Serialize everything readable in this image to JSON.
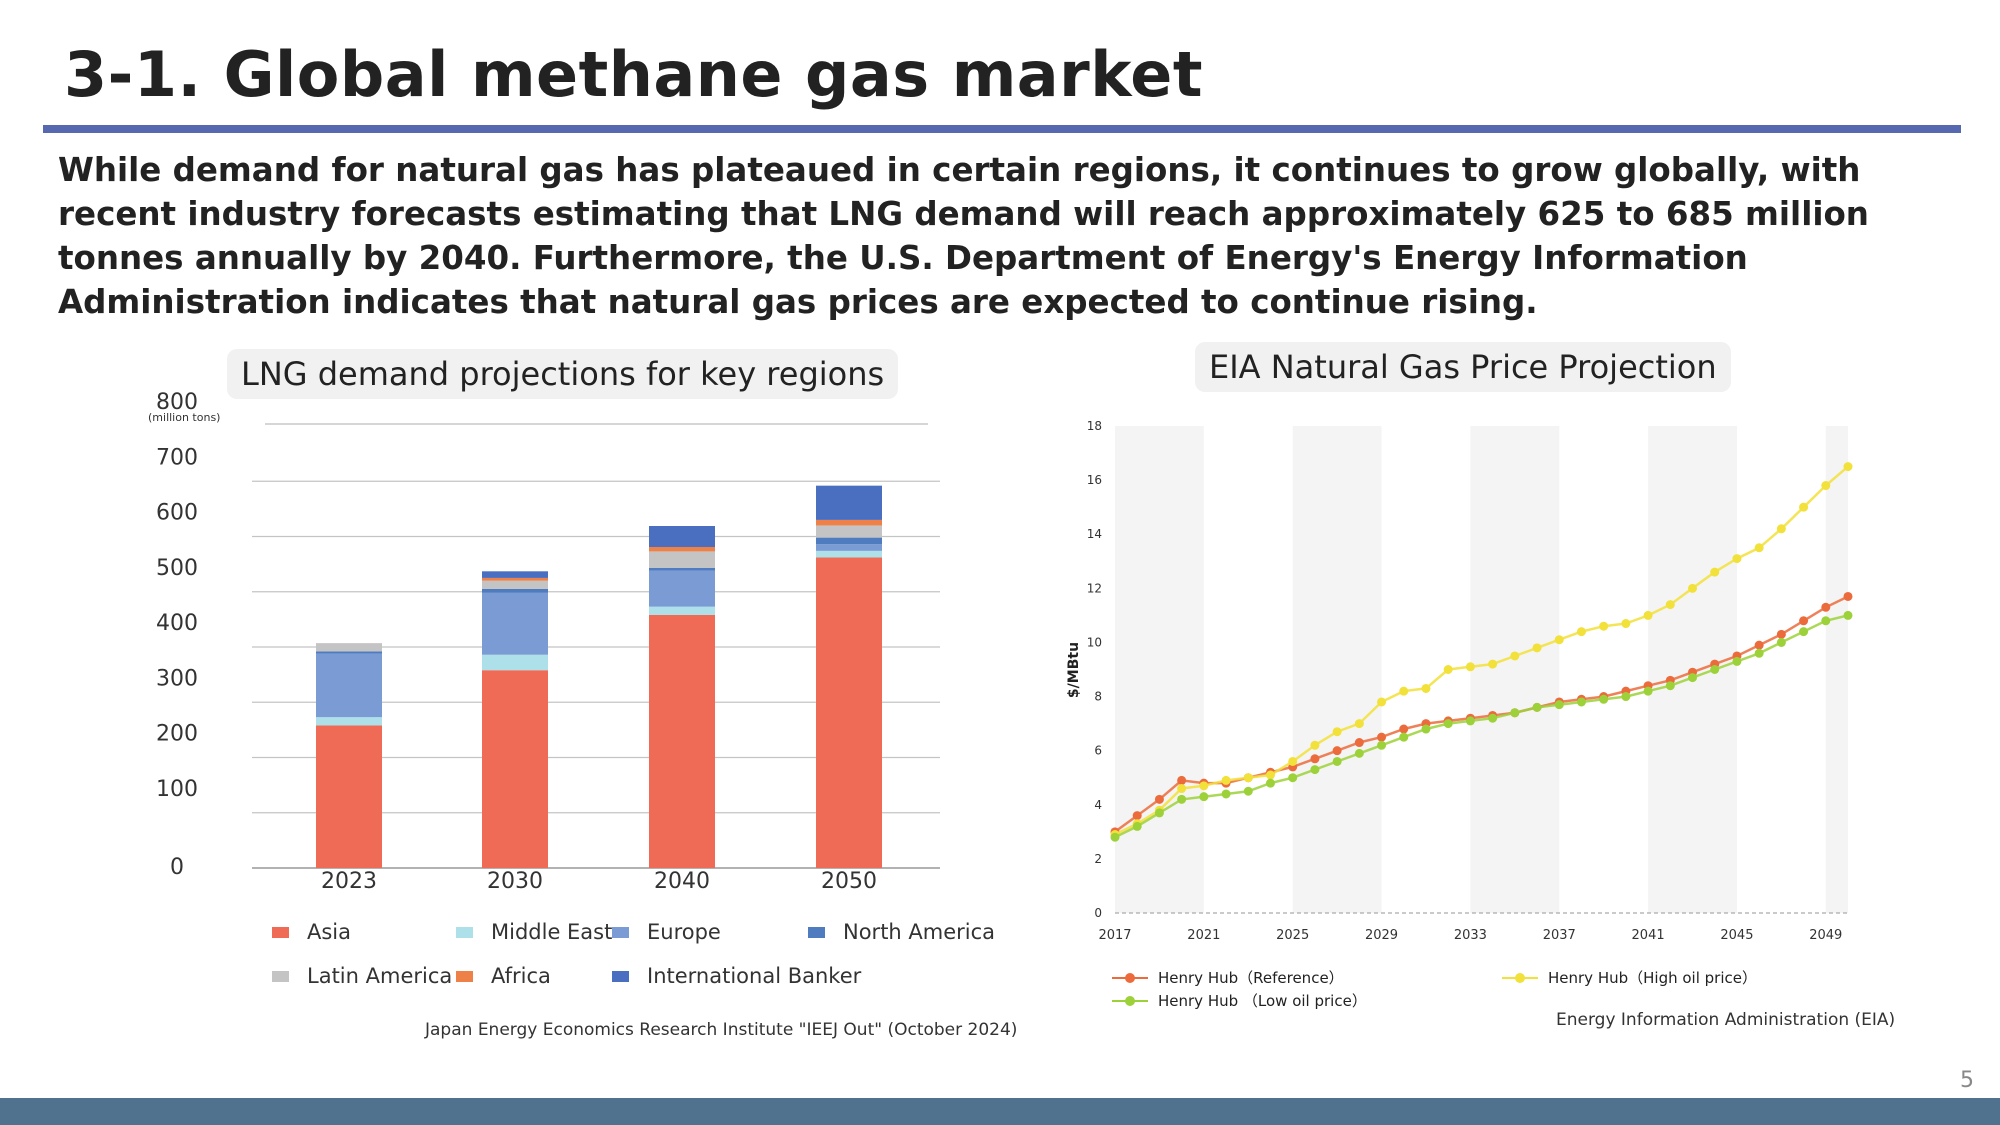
{
  "slide": {
    "title": "3-1. Global methane gas market",
    "intro": "While demand for natural gas has plateaued in certain regions, it continues to grow globally, with recent industry forecasts estimating that LNG demand will reach approximately 625 to 685 million tonnes annually by 2040. Furthermore, the U.S. Department of Energy's Energy Information Administration indicates that natural gas prices are expected to continue rising.",
    "page_number": "5"
  },
  "lng_panel": {
    "heading": "LNG demand projections for key regions",
    "source": "Japan Energy Economics Research Institute \"IEEJ Out\" (October 2024)"
  },
  "eia_panel": {
    "heading": "EIA Natural Gas Price Projection",
    "source": "Energy Information Administration (EIA)"
  },
  "chart_data": [
    {
      "type": "bar",
      "stacked": true,
      "unit_label": "(million tons)",
      "categories": [
        "2023",
        "2030",
        "2040",
        "2050"
      ],
      "yticks": [
        "800",
        "700",
        "600",
        "500",
        "400",
        "300",
        "200",
        "100",
        "0"
      ],
      "ylim": [
        0,
        800
      ],
      "series": [
        {
          "name": "Asia",
          "color": "#f06b55",
          "values": [
            258,
            358,
            458,
            562
          ]
        },
        {
          "name": "Middle East",
          "color": "#aee0ea",
          "values": [
            15,
            28,
            15,
            12
          ]
        },
        {
          "name": "Europe",
          "color": "#7b9bd5",
          "values": [
            115,
            112,
            65,
            12
          ]
        },
        {
          "name": "North America",
          "color": "#4f7bbf",
          "values": [
            4,
            7,
            5,
            12
          ]
        },
        {
          "name": "Latin America",
          "color": "#c4c4c4",
          "values": [
            15,
            15,
            30,
            22
          ]
        },
        {
          "name": "Africa",
          "color": "#ee8147",
          "values": [
            0,
            5,
            8,
            10
          ]
        },
        {
          "name": "International Banker",
          "color": "#4a6fc1",
          "values": [
            0,
            12,
            38,
            62
          ]
        }
      ],
      "legend_layout": [
        [
          "Asia",
          "Middle East",
          "Europe",
          "North America"
        ],
        [
          "Latin America",
          "Africa",
          "International Banker"
        ]
      ]
    },
    {
      "type": "line",
      "ylabel": "$/MBtu",
      "ylim": [
        0,
        18
      ],
      "yticks": [
        "0",
        "2",
        "4",
        "6",
        "8",
        "10",
        "12",
        "14",
        "16",
        "18"
      ],
      "xlim": [
        2017,
        2050
      ],
      "xticks": [
        "2017",
        "2021",
        "2025",
        "2029",
        "2033",
        "2037",
        "2041",
        "2045",
        "2049"
      ],
      "x": [
        2017,
        2018,
        2019,
        2020,
        2021,
        2022,
        2023,
        2024,
        2025,
        2026,
        2027,
        2028,
        2029,
        2030,
        2031,
        2032,
        2033,
        2034,
        2035,
        2036,
        2037,
        2038,
        2039,
        2040,
        2041,
        2042,
        2043,
        2044,
        2045,
        2046,
        2047,
        2048,
        2049,
        2050
      ],
      "series": [
        {
          "name": "Henry Hub（Reference）",
          "color": "#ec6b3c",
          "values": [
            3.0,
            3.6,
            4.2,
            4.9,
            4.8,
            4.8,
            5.0,
            5.2,
            5.4,
            5.7,
            6.0,
            6.3,
            6.5,
            6.8,
            7.0,
            7.1,
            7.2,
            7.3,
            7.4,
            7.6,
            7.8,
            7.9,
            8.0,
            8.2,
            8.4,
            8.6,
            8.9,
            9.2,
            9.5,
            9.9,
            10.3,
            10.8,
            11.3,
            11.7
          ]
        },
        {
          "name": "Henry Hub（High oil price）",
          "color": "#f2e13a",
          "values": [
            2.9,
            3.3,
            3.8,
            4.6,
            4.7,
            4.9,
            5.0,
            5.1,
            5.6,
            6.2,
            6.7,
            7.0,
            7.8,
            8.2,
            8.3,
            9.0,
            9.1,
            9.2,
            9.5,
            9.8,
            10.1,
            10.4,
            10.6,
            10.7,
            11.0,
            11.4,
            12.0,
            12.6,
            13.1,
            13.5,
            14.2,
            15.0,
            15.8,
            16.5
          ]
        },
        {
          "name": "Henry Hub （Low oil price）",
          "color": "#9dd13a",
          "values": [
            2.8,
            3.2,
            3.7,
            4.2,
            4.3,
            4.4,
            4.5,
            4.8,
            5.0,
            5.3,
            5.6,
            5.9,
            6.2,
            6.5,
            6.8,
            7.0,
            7.1,
            7.2,
            7.4,
            7.6,
            7.7,
            7.8,
            7.9,
            8.0,
            8.2,
            8.4,
            8.7,
            9.0,
            9.3,
            9.6,
            10.0,
            10.4,
            10.8,
            11.0
          ]
        }
      ]
    }
  ]
}
